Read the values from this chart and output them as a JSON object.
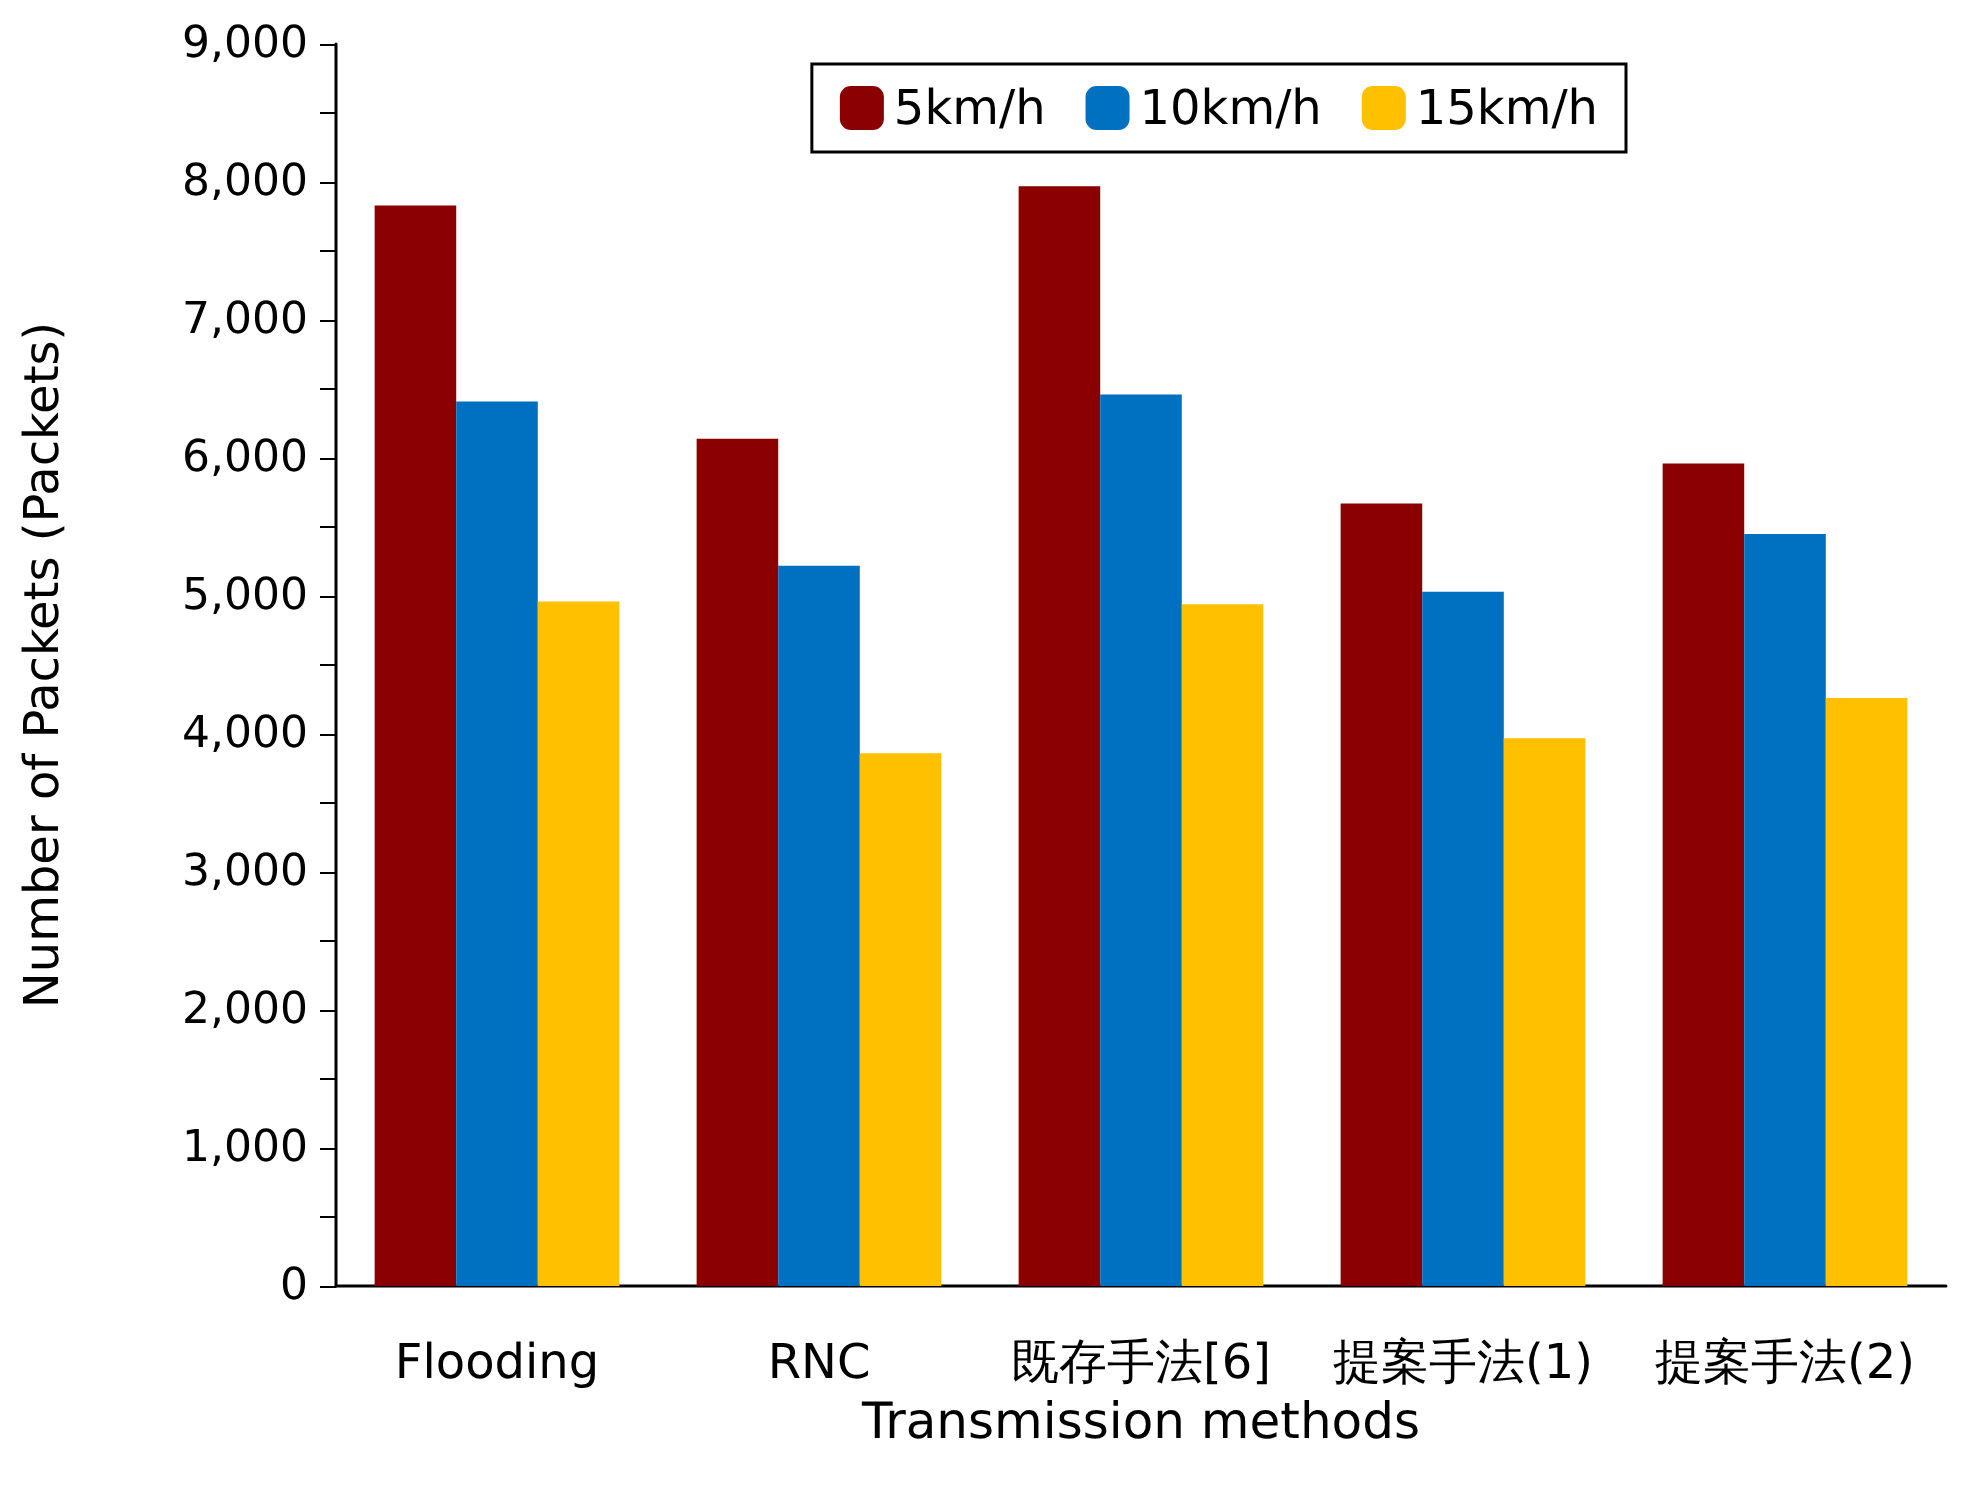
{
  "chart_data": {
    "type": "bar",
    "xlabel": "Transmission methods",
    "ylabel": "Number of Packets (Packets)",
    "categories": [
      "Flooding",
      "RNC",
      "既存手法[6]",
      "提案手法(1)",
      "提案手法(2)"
    ],
    "series": [
      {
        "name": "5km/h",
        "color": "#8b0000",
        "values": [
          7830,
          6140,
          7970,
          5670,
          5960
        ]
      },
      {
        "name": "10km/h",
        "color": "#0070c0",
        "values": [
          6410,
          5220,
          6460,
          5030,
          5450
        ]
      },
      {
        "name": "15km/h",
        "color": "#ffc000",
        "values": [
          4960,
          3860,
          4940,
          3970,
          4260
        ]
      }
    ],
    "ylim": [
      0,
      9000
    ],
    "yticks": [
      0,
      {
        "value": 500,
        "label": null
      },
      {
        "value": 1000,
        "label": "1,000"
      },
      {
        "value": 1500,
        "label": null
      },
      {
        "value": 2000,
        "label": "2,000"
      },
      {
        "value": 2500,
        "label": null
      },
      {
        "value": 3000,
        "label": "3,000"
      },
      {
        "value": 3500,
        "label": null
      },
      {
        "value": 4000,
        "label": "4,000"
      },
      {
        "value": 4500,
        "label": null
      },
      {
        "value": 5000,
        "label": "5,000"
      },
      {
        "value": 5500,
        "label": null
      },
      {
        "value": 6000,
        "label": "6,000"
      },
      {
        "value": 6500,
        "label": null
      },
      {
        "value": 7000,
        "label": "7,000"
      },
      {
        "value": 7500,
        "label": null
      },
      {
        "value": 8000,
        "label": "8,000"
      },
      {
        "value": 8500,
        "label": null
      },
      {
        "value": 9000,
        "label": "9,000"
      }
    ],
    "grid": false,
    "legend": "top right"
  }
}
